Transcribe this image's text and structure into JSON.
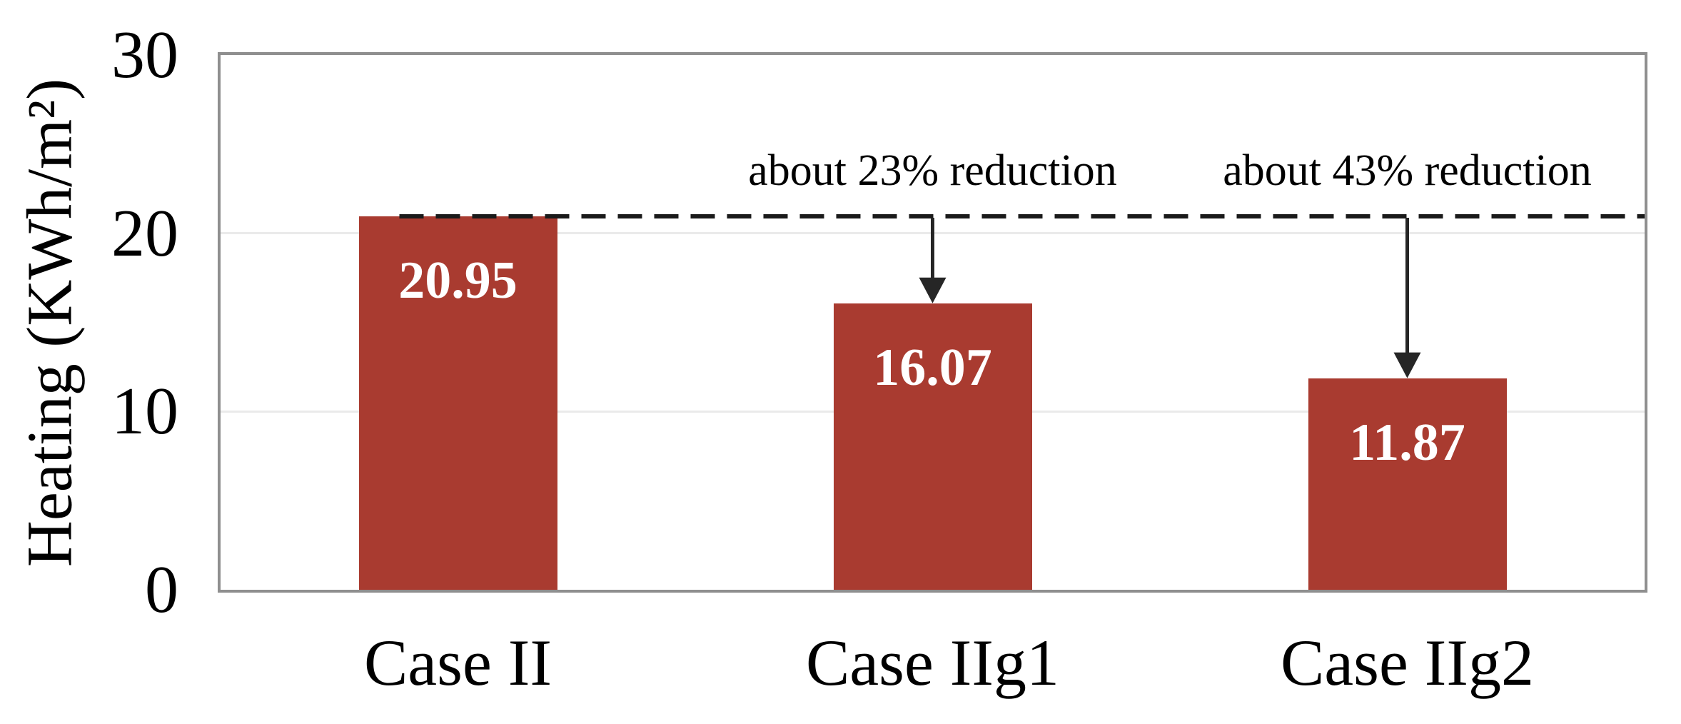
{
  "chart_data": {
    "type": "bar",
    "title": "",
    "ylabel": "Heating (KWh/m²)",
    "xlabel": "",
    "categories": [
      "Case II",
      "Case IIg1",
      "Case IIg2"
    ],
    "values": [
      20.95,
      16.07,
      11.87
    ],
    "value_labels": [
      "20.95",
      "16.07",
      "11.87"
    ],
    "ylim": [
      0,
      30
    ],
    "yticks": [
      0,
      10,
      20,
      30
    ],
    "grid": "horizontal",
    "legend_position": "none",
    "baseline": {
      "value": 20.95,
      "style": "black dashed line at level of first bar"
    },
    "annotations": [
      {
        "text": "about 23% reduction",
        "target_index": 1
      },
      {
        "text": "about 43% reduction",
        "target_index": 2
      }
    ],
    "colors": {
      "bar": "#A93B30",
      "bar_value_text": "#FFFFFF",
      "axis_border": "#8F8F8F",
      "gridline": "#EAEAEA",
      "dashed_line": "#1A1A1A",
      "arrow": "#262626",
      "text": "#000000"
    }
  }
}
